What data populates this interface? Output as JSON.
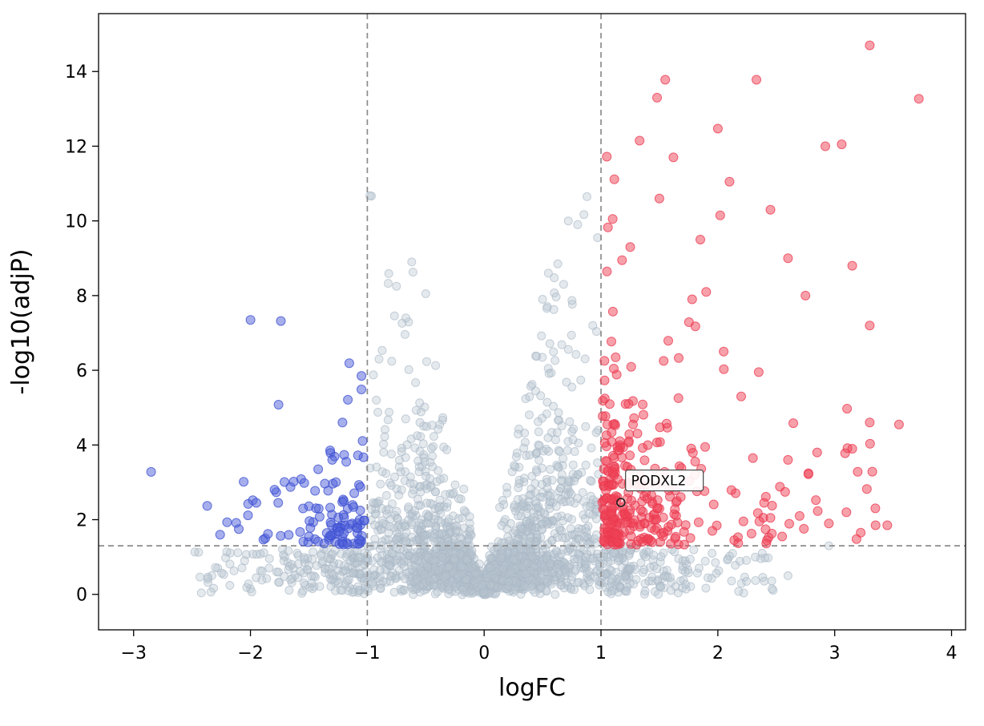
{
  "chart_data": {
    "type": "scatter",
    "title": "",
    "xlabel": "logFC",
    "ylabel": "-log10(adjP)",
    "xlim": [
      -3.3,
      4.12
    ],
    "ylim": [
      -0.95,
      15.55
    ],
    "xticks": [
      -3,
      -2,
      -1,
      0,
      1,
      2,
      3,
      4
    ],
    "yticks": [
      0,
      2,
      4,
      6,
      8,
      10,
      12,
      14
    ],
    "grid": false,
    "legend": "none",
    "seed": 42,
    "thresholds": {
      "logfc_down": -1,
      "logfc_up": 1,
      "significance": 1.301,
      "line_color": "#8c8c8c"
    },
    "annotation": {
      "label": "PODXL2",
      "point_x": 1.17,
      "point_y": 2.46,
      "label_x": 1.21,
      "label_y": 3.05
    },
    "series": [
      {
        "name": "not-significant",
        "color": "#b8c4d0",
        "edge_color": "#aab8c6",
        "opacity": 0.38,
        "count_core": 1900,
        "count_spread": 240,
        "points": [
          [
            -0.62,
            8.9
          ],
          [
            -0.75,
            8.25
          ],
          [
            -0.5,
            8.05
          ],
          [
            -0.9,
            6.3
          ],
          [
            -0.67,
            7.4
          ],
          [
            0.55,
            8.6
          ],
          [
            0.63,
            8.85
          ],
          [
            0.72,
            10.0
          ],
          [
            0.88,
            10.65
          ],
          [
            0.8,
            9.9
          ],
          [
            0.97,
            9.55
          ],
          [
            0.93,
            7.2
          ],
          [
            0.5,
            7.9
          ],
          [
            0.68,
            8.3
          ],
          [
            2.43,
            0.98
          ],
          [
            2.15,
            0.78
          ],
          [
            2.6,
            0.5
          ],
          [
            1.7,
            0.9
          ],
          [
            1.45,
            1.05
          ],
          [
            -2.3,
            0.72
          ],
          [
            -1.9,
            0.62
          ],
          [
            -1.6,
            1.1
          ],
          [
            -2.05,
            0.9
          ],
          [
            1.95,
            1.1
          ],
          [
            2.95,
            1.3
          ],
          [
            -1.35,
            1.2
          ],
          [
            1.25,
            1.18
          ]
        ]
      },
      {
        "name": "down-regulated",
        "color": "#4d5fd9",
        "edge_color": "#3b4ed0",
        "opacity": 0.5,
        "count": 100,
        "points": [
          [
            -2.85,
            3.28
          ],
          [
            -2.0,
            7.35
          ],
          [
            -1.74,
            7.32
          ],
          [
            -1.76,
            5.08
          ],
          [
            -2.37,
            2.37
          ],
          [
            -2.2,
            1.93
          ],
          [
            -1.98,
            2.52
          ],
          [
            -1.95,
            2.45
          ],
          [
            -2.02,
            2.42
          ],
          [
            -1.05,
            5.85
          ],
          [
            -2.26,
            1.6
          ],
          [
            -1.63,
            3.02
          ],
          [
            -1.55,
            2.3
          ],
          [
            -1.5,
            1.55
          ],
          [
            -2.1,
            1.75
          ],
          [
            -1.85,
            1.62
          ],
          [
            -1.42,
            3.35
          ],
          [
            -1.3,
            3.6
          ],
          [
            -1.18,
            3.55
          ],
          [
            -1.08,
            3.72
          ]
        ]
      },
      {
        "name": "up-regulated",
        "color": "#ef4256",
        "edge_color": "#e93a50",
        "opacity": 0.5,
        "count": 250,
        "count_band": 70,
        "points": [
          [
            3.72,
            13.27
          ],
          [
            3.3,
            14.7
          ],
          [
            2.33,
            13.78
          ],
          [
            1.55,
            13.78
          ],
          [
            1.48,
            13.3
          ],
          [
            3.06,
            12.05
          ],
          [
            2.92,
            12.0
          ],
          [
            2.0,
            12.47
          ],
          [
            1.33,
            12.15
          ],
          [
            1.05,
            11.72
          ],
          [
            1.62,
            11.7
          ],
          [
            2.1,
            11.05
          ],
          [
            1.5,
            10.6
          ],
          [
            2.45,
            10.3
          ],
          [
            2.02,
            10.15
          ],
          [
            3.15,
            8.8
          ],
          [
            3.3,
            7.2
          ],
          [
            2.6,
            9.0
          ],
          [
            2.75,
            8.0
          ],
          [
            1.85,
            9.5
          ],
          [
            3.55,
            4.55
          ],
          [
            3.3,
            4.6
          ],
          [
            3.15,
            3.9
          ],
          [
            2.85,
            3.8
          ],
          [
            3.1,
            2.2
          ],
          [
            3.35,
            1.85
          ],
          [
            3.45,
            1.85
          ],
          [
            2.95,
            1.9
          ],
          [
            2.6,
            3.6
          ],
          [
            2.45,
            2.05
          ],
          [
            2.3,
            3.65
          ],
          [
            2.2,
            5.3
          ],
          [
            2.35,
            5.95
          ],
          [
            2.05,
            6.5
          ],
          [
            1.9,
            8.1
          ],
          [
            1.78,
            7.9
          ],
          [
            2.55,
            1.55
          ],
          [
            2.7,
            2.1
          ],
          [
            1.1,
            10.05
          ],
          [
            1.25,
            9.3
          ]
        ]
      }
    ]
  }
}
